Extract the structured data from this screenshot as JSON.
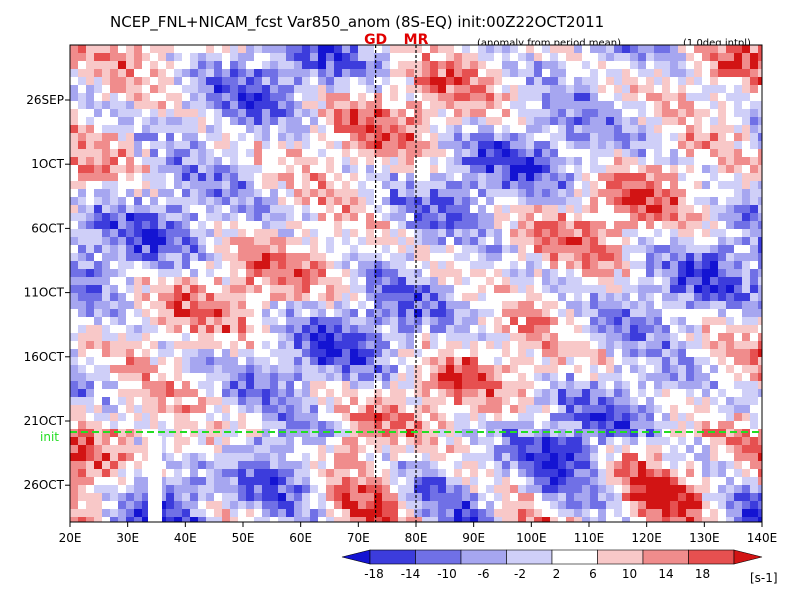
{
  "chart_data": {
    "type": "heatmap",
    "title": "NCEP_FNL+NICAM_fcst Var850_anom (8S-EQ) init:00Z22OCT2011",
    "subtitle": "(anomaly from period mean)",
    "note": "(1.0deg intpl)",
    "x_ticks": [
      "20E",
      "30E",
      "40E",
      "50E",
      "60E",
      "70E",
      "80E",
      "90E",
      "100E",
      "110E",
      "120E",
      "130E",
      "140E"
    ],
    "x_range": [
      20,
      140
    ],
    "y_ticks": [
      "26SEP",
      "1OCT",
      "6OCT",
      "11OCT",
      "16OCT",
      "21OCT",
      "26OCT"
    ],
    "markers": [
      {
        "label": "GD",
        "lon": 73
      },
      {
        "label": "MR",
        "lon": 80
      }
    ],
    "init_label": "init",
    "colorbar": {
      "levels": [
        "-18",
        "-14",
        "-10",
        "-6",
        "-2",
        "2",
        "6",
        "10",
        "14",
        "18"
      ],
      "unit": "[s-1]",
      "colors": [
        "#1414d2",
        "#3c3cdc",
        "#7070e6",
        "#a6a6f0",
        "#cfcff8",
        "#ffffff",
        "#f8c8c8",
        "#f08c8c",
        "#e65050",
        "#d21414"
      ]
    },
    "colors": {
      "init_line": "#22dd22",
      "marker_text": "#e00000"
    }
  }
}
